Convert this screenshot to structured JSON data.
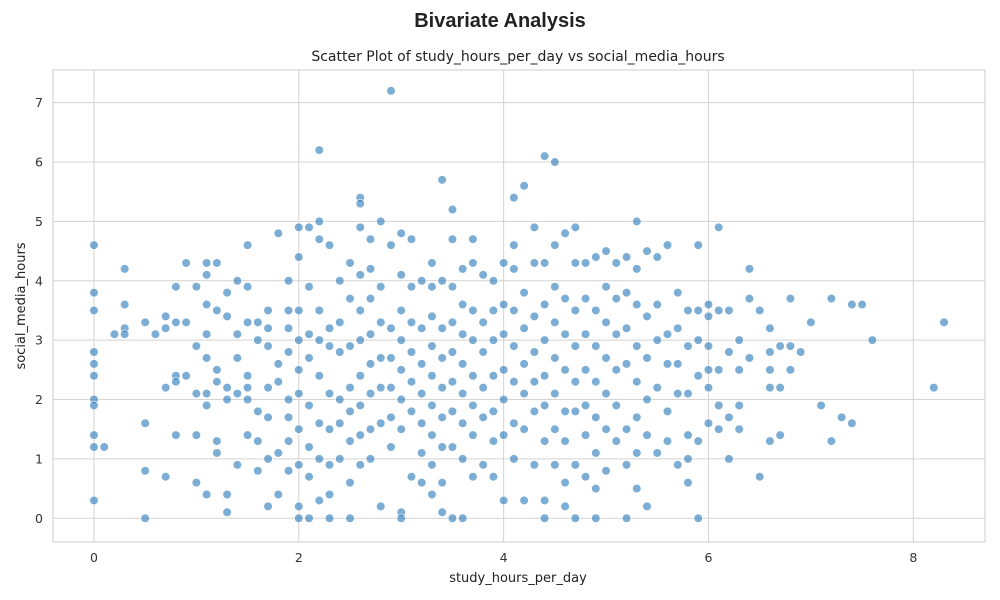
{
  "figure": {
    "suptitle": "Bivariate Analysis"
  },
  "chart_data": {
    "type": "scatter",
    "title": "Scatter Plot of study_hours_per_day vs social_media_hours",
    "xlabel": "study_hours_per_day",
    "ylabel": "social_media_hours",
    "xlim": [
      -0.4,
      8.7
    ],
    "ylim": [
      -0.4,
      7.55
    ],
    "xticks": [
      0,
      2,
      4,
      6,
      8
    ],
    "yticks": [
      0,
      1,
      2,
      3,
      4,
      5,
      6,
      7
    ],
    "grid": true,
    "point_color": "#2b7bba",
    "points": [
      [
        0,
        4.6
      ],
      [
        0,
        3.8
      ],
      [
        0,
        3.5
      ],
      [
        0,
        2.8
      ],
      [
        0,
        2.6
      ],
      [
        0,
        2.4
      ],
      [
        0,
        2.0
      ],
      [
        0,
        1.9
      ],
      [
        0,
        1.4
      ],
      [
        0,
        1.2
      ],
      [
        0,
        0.3
      ],
      [
        0.1,
        1.2
      ],
      [
        0.2,
        3.1
      ],
      [
        0.3,
        4.2
      ],
      [
        0.3,
        3.6
      ],
      [
        0.3,
        3.2
      ],
      [
        0.3,
        3.1
      ],
      [
        0.5,
        3.3
      ],
      [
        0.5,
        1.6
      ],
      [
        0.5,
        0.8
      ],
      [
        0.5,
        0.0
      ],
      [
        0.6,
        3.1
      ],
      [
        0.7,
        3.4
      ],
      [
        0.7,
        3.2
      ],
      [
        0.7,
        2.2
      ],
      [
        0.7,
        0.7
      ],
      [
        0.8,
        3.9
      ],
      [
        0.8,
        3.3
      ],
      [
        0.8,
        2.4
      ],
      [
        0.8,
        2.3
      ],
      [
        0.8,
        1.4
      ],
      [
        0.9,
        4.3
      ],
      [
        0.9,
        3.3
      ],
      [
        0.9,
        2.4
      ],
      [
        1.0,
        3.9
      ],
      [
        1.0,
        2.9
      ],
      [
        1.0,
        2.1
      ],
      [
        1.0,
        1.4
      ],
      [
        1.0,
        0.6
      ],
      [
        1.1,
        4.3
      ],
      [
        1.1,
        4.1
      ],
      [
        1.1,
        3.6
      ],
      [
        1.1,
        3.1
      ],
      [
        1.1,
        2.7
      ],
      [
        1.1,
        2.1
      ],
      [
        1.1,
        1.9
      ],
      [
        1.1,
        0.4
      ],
      [
        1.2,
        4.3
      ],
      [
        1.2,
        3.5
      ],
      [
        1.2,
        2.5
      ],
      [
        1.2,
        2.3
      ],
      [
        1.2,
        1.3
      ],
      [
        1.2,
        1.1
      ],
      [
        1.3,
        3.8
      ],
      [
        1.3,
        3.4
      ],
      [
        1.3,
        2.2
      ],
      [
        1.3,
        2.0
      ],
      [
        1.3,
        0.4
      ],
      [
        1.3,
        0.1
      ],
      [
        1.4,
        4.0
      ],
      [
        1.4,
        3.1
      ],
      [
        1.4,
        2.7
      ],
      [
        1.4,
        2.1
      ],
      [
        1.4,
        0.9
      ],
      [
        1.5,
        4.6
      ],
      [
        1.5,
        3.9
      ],
      [
        1.5,
        3.3
      ],
      [
        1.5,
        2.4
      ],
      [
        1.5,
        2.2
      ],
      [
        1.5,
        2.0
      ],
      [
        1.5,
        1.4
      ],
      [
        1.6,
        3.3
      ],
      [
        1.6,
        3.0
      ],
      [
        1.6,
        1.8
      ],
      [
        1.6,
        1.3
      ],
      [
        1.6,
        0.8
      ],
      [
        1.7,
        3.5
      ],
      [
        1.7,
        3.2
      ],
      [
        1.7,
        2.9
      ],
      [
        1.7,
        2.2
      ],
      [
        1.7,
        1.7
      ],
      [
        1.7,
        1.0
      ],
      [
        1.7,
        0.2
      ],
      [
        1.8,
        4.8
      ],
      [
        1.8,
        2.6
      ],
      [
        1.8,
        2.3
      ],
      [
        1.8,
        1.1
      ],
      [
        1.8,
        0.4
      ],
      [
        1.9,
        4.0
      ],
      [
        1.9,
        3.5
      ],
      [
        1.9,
        3.2
      ],
      [
        1.9,
        2.8
      ],
      [
        1.9,
        2.0
      ],
      [
        1.9,
        1.7
      ],
      [
        1.9,
        1.3
      ],
      [
        1.9,
        0.8
      ],
      [
        2.0,
        4.9
      ],
      [
        2.0,
        4.4
      ],
      [
        2.0,
        3.5
      ],
      [
        2.0,
        3.0
      ],
      [
        2.0,
        2.5
      ],
      [
        2.0,
        2.1
      ],
      [
        2.0,
        1.5
      ],
      [
        2.0,
        0.9
      ],
      [
        2.0,
        0.2
      ],
      [
        2.0,
        0.0
      ],
      [
        2.1,
        4.9
      ],
      [
        2.1,
        3.9
      ],
      [
        2.1,
        3.1
      ],
      [
        2.1,
        2.7
      ],
      [
        2.1,
        1.9
      ],
      [
        2.1,
        1.2
      ],
      [
        2.1,
        0.7
      ],
      [
        2.1,
        0.0
      ],
      [
        2.2,
        6.2
      ],
      [
        2.2,
        5.0
      ],
      [
        2.2,
        4.7
      ],
      [
        2.2,
        3.5
      ],
      [
        2.2,
        3.0
      ],
      [
        2.2,
        2.4
      ],
      [
        2.2,
        1.6
      ],
      [
        2.2,
        1.0
      ],
      [
        2.2,
        0.3
      ],
      [
        2.3,
        4.6
      ],
      [
        2.3,
        3.2
      ],
      [
        2.3,
        2.9
      ],
      [
        2.3,
        2.1
      ],
      [
        2.3,
        1.5
      ],
      [
        2.3,
        0.9
      ],
      [
        2.3,
        0.4
      ],
      [
        2.3,
        0.0
      ],
      [
        2.4,
        4.0
      ],
      [
        2.4,
        3.3
      ],
      [
        2.4,
        2.8
      ],
      [
        2.4,
        2.0
      ],
      [
        2.4,
        1.6
      ],
      [
        2.4,
        1.0
      ],
      [
        2.5,
        4.3
      ],
      [
        2.5,
        3.7
      ],
      [
        2.5,
        2.9
      ],
      [
        2.5,
        2.2
      ],
      [
        2.5,
        1.8
      ],
      [
        2.5,
        1.3
      ],
      [
        2.5,
        0.6
      ],
      [
        2.5,
        0.0
      ],
      [
        2.6,
        5.4
      ],
      [
        2.6,
        5.3
      ],
      [
        2.6,
        4.9
      ],
      [
        2.6,
        4.1
      ],
      [
        2.6,
        3.5
      ],
      [
        2.6,
        3.0
      ],
      [
        2.6,
        2.4
      ],
      [
        2.6,
        1.9
      ],
      [
        2.6,
        1.4
      ],
      [
        2.6,
        0.9
      ],
      [
        2.7,
        4.7
      ],
      [
        2.7,
        4.2
      ],
      [
        2.7,
        3.7
      ],
      [
        2.7,
        3.1
      ],
      [
        2.7,
        2.6
      ],
      [
        2.7,
        2.1
      ],
      [
        2.7,
        1.5
      ],
      [
        2.7,
        1.0
      ],
      [
        2.8,
        5.0
      ],
      [
        2.8,
        3.9
      ],
      [
        2.8,
        3.3
      ],
      [
        2.8,
        2.7
      ],
      [
        2.8,
        2.2
      ],
      [
        2.8,
        1.6
      ],
      [
        2.8,
        0.2
      ],
      [
        2.9,
        7.2
      ],
      [
        2.9,
        4.6
      ],
      [
        2.9,
        3.2
      ],
      [
        2.9,
        2.7
      ],
      [
        2.9,
        2.2
      ],
      [
        2.9,
        1.7
      ],
      [
        2.9,
        1.2
      ],
      [
        3.0,
        4.8
      ],
      [
        3.0,
        4.1
      ],
      [
        3.0,
        3.5
      ],
      [
        3.0,
        3.0
      ],
      [
        3.0,
        2.5
      ],
      [
        3.0,
        2.0
      ],
      [
        3.0,
        1.5
      ],
      [
        3.0,
        0.1
      ],
      [
        3.0,
        0.0
      ],
      [
        3.1,
        4.7
      ],
      [
        3.1,
        3.9
      ],
      [
        3.1,
        3.3
      ],
      [
        3.1,
        2.8
      ],
      [
        3.1,
        2.3
      ],
      [
        3.1,
        1.8
      ],
      [
        3.1,
        0.7
      ],
      [
        3.2,
        4.0
      ],
      [
        3.2,
        3.2
      ],
      [
        3.2,
        2.6
      ],
      [
        3.2,
        2.1
      ],
      [
        3.2,
        1.6
      ],
      [
        3.2,
        1.1
      ],
      [
        3.2,
        0.6
      ],
      [
        3.3,
        4.3
      ],
      [
        3.3,
        3.9
      ],
      [
        3.3,
        3.4
      ],
      [
        3.3,
        2.9
      ],
      [
        3.3,
        2.4
      ],
      [
        3.3,
        1.9
      ],
      [
        3.3,
        1.4
      ],
      [
        3.3,
        0.9
      ],
      [
        3.3,
        0.4
      ],
      [
        3.4,
        5.7
      ],
      [
        3.4,
        4.0
      ],
      [
        3.4,
        3.2
      ],
      [
        3.4,
        2.7
      ],
      [
        3.4,
        2.2
      ],
      [
        3.4,
        1.7
      ],
      [
        3.4,
        1.2
      ],
      [
        3.4,
        0.6
      ],
      [
        3.4,
        0.1
      ],
      [
        3.5,
        5.2
      ],
      [
        3.5,
        4.7
      ],
      [
        3.5,
        3.9
      ],
      [
        3.5,
        3.3
      ],
      [
        3.5,
        2.8
      ],
      [
        3.5,
        2.3
      ],
      [
        3.5,
        1.8
      ],
      [
        3.5,
        1.2
      ],
      [
        3.5,
        0.0
      ],
      [
        3.6,
        4.2
      ],
      [
        3.6,
        3.6
      ],
      [
        3.6,
        3.1
      ],
      [
        3.6,
        2.6
      ],
      [
        3.6,
        2.1
      ],
      [
        3.6,
        1.6
      ],
      [
        3.6,
        1.0
      ],
      [
        3.6,
        0.0
      ],
      [
        3.7,
        4.7
      ],
      [
        3.7,
        4.3
      ],
      [
        3.7,
        3.5
      ],
      [
        3.7,
        3.0
      ],
      [
        3.7,
        2.4
      ],
      [
        3.7,
        1.9
      ],
      [
        3.7,
        1.4
      ],
      [
        3.7,
        0.7
      ],
      [
        3.8,
        4.1
      ],
      [
        3.8,
        3.3
      ],
      [
        3.8,
        2.8
      ],
      [
        3.8,
        2.2
      ],
      [
        3.8,
        1.7
      ],
      [
        3.8,
        0.9
      ],
      [
        3.9,
        4.0
      ],
      [
        3.9,
        3.5
      ],
      [
        3.9,
        3.0
      ],
      [
        3.9,
        2.4
      ],
      [
        3.9,
        1.8
      ],
      [
        3.9,
        1.3
      ],
      [
        3.9,
        0.7
      ],
      [
        4.0,
        4.3
      ],
      [
        4.0,
        3.6
      ],
      [
        4.0,
        3.1
      ],
      [
        4.0,
        2.5
      ],
      [
        4.0,
        2.0
      ],
      [
        4.0,
        1.4
      ],
      [
        4.0,
        0.3
      ],
      [
        4.1,
        5.4
      ],
      [
        4.1,
        4.6
      ],
      [
        4.1,
        4.2
      ],
      [
        4.1,
        3.5
      ],
      [
        4.1,
        2.9
      ],
      [
        4.1,
        2.3
      ],
      [
        4.1,
        1.6
      ],
      [
        4.1,
        1.0
      ],
      [
        4.2,
        5.6
      ],
      [
        4.2,
        3.8
      ],
      [
        4.2,
        3.2
      ],
      [
        4.2,
        2.6
      ],
      [
        4.2,
        2.1
      ],
      [
        4.2,
        1.5
      ],
      [
        4.2,
        0.3
      ],
      [
        4.3,
        4.9
      ],
      [
        4.3,
        4.3
      ],
      [
        4.3,
        3.4
      ],
      [
        4.3,
        2.8
      ],
      [
        4.3,
        2.3
      ],
      [
        4.3,
        1.8
      ],
      [
        4.3,
        0.9
      ],
      [
        4.4,
        6.1
      ],
      [
        4.4,
        4.3
      ],
      [
        4.4,
        3.6
      ],
      [
        4.4,
        3.0
      ],
      [
        4.4,
        2.4
      ],
      [
        4.4,
        1.9
      ],
      [
        4.4,
        1.3
      ],
      [
        4.4,
        0.3
      ],
      [
        4.4,
        0.0
      ],
      [
        4.5,
        6.0
      ],
      [
        4.5,
        4.6
      ],
      [
        4.5,
        3.9
      ],
      [
        4.5,
        3.3
      ],
      [
        4.5,
        2.7
      ],
      [
        4.5,
        2.1
      ],
      [
        4.5,
        1.5
      ],
      [
        4.5,
        0.9
      ],
      [
        4.6,
        4.8
      ],
      [
        4.6,
        3.7
      ],
      [
        4.6,
        3.1
      ],
      [
        4.6,
        2.5
      ],
      [
        4.6,
        1.8
      ],
      [
        4.6,
        1.3
      ],
      [
        4.6,
        0.6
      ],
      [
        4.6,
        0.2
      ],
      [
        4.7,
        4.9
      ],
      [
        4.7,
        4.3
      ],
      [
        4.7,
        3.5
      ],
      [
        4.7,
        2.9
      ],
      [
        4.7,
        2.3
      ],
      [
        4.7,
        1.8
      ],
      [
        4.7,
        0.9
      ],
      [
        4.7,
        0.0
      ],
      [
        4.8,
        4.3
      ],
      [
        4.8,
        3.7
      ],
      [
        4.8,
        3.1
      ],
      [
        4.8,
        2.5
      ],
      [
        4.8,
        1.9
      ],
      [
        4.8,
        1.4
      ],
      [
        4.8,
        0.7
      ],
      [
        4.9,
        4.4
      ],
      [
        4.9,
        3.5
      ],
      [
        4.9,
        2.9
      ],
      [
        4.9,
        2.3
      ],
      [
        4.9,
        1.7
      ],
      [
        4.9,
        1.1
      ],
      [
        4.9,
        0.5
      ],
      [
        4.9,
        0.0
      ],
      [
        5.0,
        4.5
      ],
      [
        5.0,
        3.9
      ],
      [
        5.0,
        3.3
      ],
      [
        5.0,
        2.7
      ],
      [
        5.0,
        2.1
      ],
      [
        5.0,
        1.5
      ],
      [
        5.0,
        0.8
      ],
      [
        5.1,
        4.3
      ],
      [
        5.1,
        3.7
      ],
      [
        5.1,
        3.1
      ],
      [
        5.1,
        2.5
      ],
      [
        5.1,
        1.9
      ],
      [
        5.1,
        1.3
      ],
      [
        5.2,
        4.4
      ],
      [
        5.2,
        3.8
      ],
      [
        5.2,
        3.2
      ],
      [
        5.2,
        2.6
      ],
      [
        5.2,
        1.5
      ],
      [
        5.2,
        0.9
      ],
      [
        5.2,
        0.0
      ],
      [
        5.3,
        5.0
      ],
      [
        5.3,
        4.2
      ],
      [
        5.3,
        3.6
      ],
      [
        5.3,
        2.9
      ],
      [
        5.3,
        2.3
      ],
      [
        5.3,
        1.7
      ],
      [
        5.3,
        1.1
      ],
      [
        5.3,
        0.5
      ],
      [
        5.4,
        4.5
      ],
      [
        5.4,
        3.4
      ],
      [
        5.4,
        2.7
      ],
      [
        5.4,
        2.0
      ],
      [
        5.4,
        1.4
      ],
      [
        5.4,
        0.2
      ],
      [
        5.5,
        4.4
      ],
      [
        5.5,
        3.6
      ],
      [
        5.5,
        3.0
      ],
      [
        5.5,
        2.2
      ],
      [
        5.5,
        1.1
      ],
      [
        5.6,
        4.6
      ],
      [
        5.6,
        3.1
      ],
      [
        5.6,
        2.6
      ],
      [
        5.6,
        1.8
      ],
      [
        5.6,
        1.3
      ],
      [
        5.7,
        3.8
      ],
      [
        5.7,
        3.2
      ],
      [
        5.7,
        2.6
      ],
      [
        5.7,
        2.1
      ],
      [
        5.7,
        0.9
      ],
      [
        5.8,
        3.5
      ],
      [
        5.8,
        2.9
      ],
      [
        5.8,
        2.1
      ],
      [
        5.8,
        1.4
      ],
      [
        5.8,
        1.0
      ],
      [
        5.8,
        0.6
      ],
      [
        5.9,
        4.6
      ],
      [
        5.9,
        3.5
      ],
      [
        5.9,
        3.0
      ],
      [
        5.9,
        2.4
      ],
      [
        5.9,
        1.3
      ],
      [
        5.9,
        0.0
      ],
      [
        6.0,
        3.6
      ],
      [
        6.0,
        3.4
      ],
      [
        6.0,
        2.9
      ],
      [
        6.0,
        2.5
      ],
      [
        6.0,
        2.2
      ],
      [
        6.0,
        1.6
      ],
      [
        6.1,
        4.9
      ],
      [
        6.1,
        3.5
      ],
      [
        6.1,
        2.5
      ],
      [
        6.1,
        1.9
      ],
      [
        6.1,
        1.5
      ],
      [
        6.2,
        3.5
      ],
      [
        6.2,
        2.8
      ],
      [
        6.2,
        1.7
      ],
      [
        6.2,
        1.0
      ],
      [
        6.3,
        3.0
      ],
      [
        6.3,
        2.5
      ],
      [
        6.3,
        1.9
      ],
      [
        6.3,
        1.5
      ],
      [
        6.4,
        4.2
      ],
      [
        6.4,
        3.7
      ],
      [
        6.4,
        2.7
      ],
      [
        6.5,
        3.5
      ],
      [
        6.5,
        0.7
      ],
      [
        6.6,
        3.2
      ],
      [
        6.6,
        2.8
      ],
      [
        6.6,
        2.5
      ],
      [
        6.6,
        2.2
      ],
      [
        6.6,
        1.3
      ],
      [
        6.7,
        2.9
      ],
      [
        6.7,
        2.2
      ],
      [
        6.7,
        1.4
      ],
      [
        6.8,
        3.7
      ],
      [
        6.8,
        2.9
      ],
      [
        6.8,
        2.5
      ],
      [
        6.9,
        2.8
      ],
      [
        7.0,
        3.3
      ],
      [
        7.1,
        1.9
      ],
      [
        7.2,
        3.7
      ],
      [
        7.2,
        1.3
      ],
      [
        7.3,
        1.7
      ],
      [
        7.4,
        3.6
      ],
      [
        7.4,
        1.6
      ],
      [
        7.5,
        3.6
      ],
      [
        7.6,
        3.0
      ],
      [
        8.2,
        2.2
      ],
      [
        8.3,
        3.3
      ]
    ]
  }
}
